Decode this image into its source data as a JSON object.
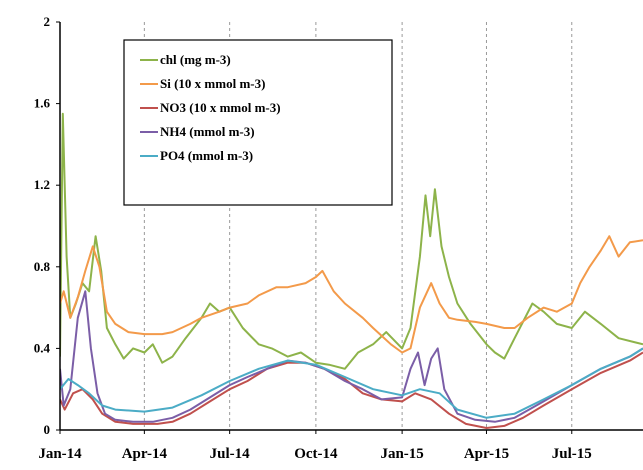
{
  "chart_data": {
    "type": "line",
    "title": "",
    "xlabel": "",
    "ylabel": "",
    "ylim": [
      0,
      2
    ],
    "yticks": [
      "0",
      "0.4",
      "0.8",
      "1.2",
      "1.6",
      "2"
    ],
    "xlim": [
      "2014-01-01",
      "2015-09-15"
    ],
    "xticks": [
      {
        "label": "Jan-14",
        "date": "2014-01-01"
      },
      {
        "label": "Apr-14",
        "date": "2014-04-01"
      },
      {
        "label": "Jul-14",
        "date": "2014-07-01"
      },
      {
        "label": "Oct-14",
        "date": "2014-10-01"
      },
      {
        "label": "Jan-15",
        "date": "2015-01-01"
      },
      {
        "label": "Apr-15",
        "date": "2015-04-01"
      },
      {
        "label": "Jul-15",
        "date": "2015-07-01"
      }
    ],
    "grid": "dashed vertical lines at each month tick",
    "legend_position": "top-left",
    "series": [
      {
        "name": "chl (mg m-3)",
        "color": "#8db34a",
        "points": [
          [
            "2014-01-01",
            0.36
          ],
          [
            "2014-01-04",
            1.55
          ],
          [
            "2014-01-08",
            0.85
          ],
          [
            "2014-01-12",
            0.55
          ],
          [
            "2014-01-18",
            0.62
          ],
          [
            "2014-01-25",
            0.72
          ],
          [
            "2014-02-01",
            0.68
          ],
          [
            "2014-02-08",
            0.95
          ],
          [
            "2014-02-14",
            0.78
          ],
          [
            "2014-02-20",
            0.5
          ],
          [
            "2014-03-01",
            0.42
          ],
          [
            "2014-03-10",
            0.35
          ],
          [
            "2014-03-20",
            0.4
          ],
          [
            "2014-04-01",
            0.38
          ],
          [
            "2014-04-10",
            0.42
          ],
          [
            "2014-04-20",
            0.33
          ],
          [
            "2014-05-01",
            0.36
          ],
          [
            "2014-05-15",
            0.45
          ],
          [
            "2014-06-01",
            0.55
          ],
          [
            "2014-06-10",
            0.62
          ],
          [
            "2014-06-20",
            0.58
          ],
          [
            "2014-07-01",
            0.6
          ],
          [
            "2014-07-15",
            0.5
          ],
          [
            "2014-08-01",
            0.42
          ],
          [
            "2014-08-15",
            0.4
          ],
          [
            "2014-09-01",
            0.36
          ],
          [
            "2014-09-15",
            0.38
          ],
          [
            "2014-10-01",
            0.33
          ],
          [
            "2014-10-15",
            0.32
          ],
          [
            "2014-11-01",
            0.3
          ],
          [
            "2014-11-15",
            0.38
          ],
          [
            "2014-12-01",
            0.42
          ],
          [
            "2014-12-15",
            0.48
          ],
          [
            "2015-01-01",
            0.4
          ],
          [
            "2015-01-10",
            0.5
          ],
          [
            "2015-01-20",
            0.85
          ],
          [
            "2015-01-26",
            1.15
          ],
          [
            "2015-01-31",
            0.95
          ],
          [
            "2015-02-05",
            1.18
          ],
          [
            "2015-02-12",
            0.9
          ],
          [
            "2015-02-20",
            0.75
          ],
          [
            "2015-03-01",
            0.62
          ],
          [
            "2015-03-15",
            0.52
          ],
          [
            "2015-04-01",
            0.42
          ],
          [
            "2015-04-10",
            0.38
          ],
          [
            "2015-04-20",
            0.35
          ],
          [
            "2015-05-01",
            0.45
          ],
          [
            "2015-05-20",
            0.62
          ],
          [
            "2015-06-01",
            0.58
          ],
          [
            "2015-06-15",
            0.52
          ],
          [
            "2015-07-01",
            0.5
          ],
          [
            "2015-07-15",
            0.58
          ],
          [
            "2015-08-01",
            0.52
          ],
          [
            "2015-08-20",
            0.45
          ],
          [
            "2015-09-15",
            0.42
          ]
        ]
      },
      {
        "name": "Si  (10 x mmol m-3)",
        "color": "#f39a4a",
        "points": [
          [
            "2014-01-01",
            0.62
          ],
          [
            "2014-01-05",
            0.68
          ],
          [
            "2014-01-12",
            0.55
          ],
          [
            "2014-01-20",
            0.65
          ],
          [
            "2014-01-28",
            0.78
          ],
          [
            "2014-02-05",
            0.9
          ],
          [
            "2014-02-12",
            0.8
          ],
          [
            "2014-02-20",
            0.58
          ],
          [
            "2014-03-01",
            0.52
          ],
          [
            "2014-03-15",
            0.48
          ],
          [
            "2014-04-01",
            0.47
          ],
          [
            "2014-04-20",
            0.47
          ],
          [
            "2014-05-01",
            0.48
          ],
          [
            "2014-05-20",
            0.52
          ],
          [
            "2014-06-01",
            0.55
          ],
          [
            "2014-06-20",
            0.58
          ],
          [
            "2014-07-01",
            0.6
          ],
          [
            "2014-07-20",
            0.62
          ],
          [
            "2014-08-01",
            0.66
          ],
          [
            "2014-08-20",
            0.7
          ],
          [
            "2014-09-01",
            0.7
          ],
          [
            "2014-09-20",
            0.72
          ],
          [
            "2014-10-01",
            0.75
          ],
          [
            "2014-10-08",
            0.78
          ],
          [
            "2014-10-20",
            0.68
          ],
          [
            "2014-11-01",
            0.62
          ],
          [
            "2014-11-20",
            0.55
          ],
          [
            "2014-12-01",
            0.5
          ],
          [
            "2014-12-20",
            0.42
          ],
          [
            "2015-01-01",
            0.38
          ],
          [
            "2015-01-10",
            0.4
          ],
          [
            "2015-01-20",
            0.6
          ],
          [
            "2015-02-01",
            0.72
          ],
          [
            "2015-02-10",
            0.62
          ],
          [
            "2015-02-20",
            0.55
          ],
          [
            "2015-03-01",
            0.54
          ],
          [
            "2015-03-20",
            0.53
          ],
          [
            "2015-04-01",
            0.52
          ],
          [
            "2015-04-20",
            0.5
          ],
          [
            "2015-05-01",
            0.5
          ],
          [
            "2015-05-15",
            0.55
          ],
          [
            "2015-06-01",
            0.6
          ],
          [
            "2015-06-15",
            0.58
          ],
          [
            "2015-07-01",
            0.62
          ],
          [
            "2015-07-10",
            0.72
          ],
          [
            "2015-07-20",
            0.8
          ],
          [
            "2015-08-01",
            0.88
          ],
          [
            "2015-08-10",
            0.95
          ],
          [
            "2015-08-20",
            0.85
          ],
          [
            "2015-09-01",
            0.92
          ],
          [
            "2015-09-15",
            0.93
          ]
        ]
      },
      {
        "name": "NO3  (10 x mmol m-3)",
        "color": "#c0504d",
        "points": [
          [
            "2014-01-01",
            0.15
          ],
          [
            "2014-01-06",
            0.1
          ],
          [
            "2014-01-15",
            0.18
          ],
          [
            "2014-01-25",
            0.2
          ],
          [
            "2014-02-05",
            0.15
          ],
          [
            "2014-02-15",
            0.08
          ],
          [
            "2014-03-01",
            0.04
          ],
          [
            "2014-03-20",
            0.03
          ],
          [
            "2014-04-15",
            0.03
          ],
          [
            "2014-05-01",
            0.04
          ],
          [
            "2014-05-20",
            0.08
          ],
          [
            "2014-06-10",
            0.14
          ],
          [
            "2014-07-01",
            0.2
          ],
          [
            "2014-07-20",
            0.24
          ],
          [
            "2014-08-10",
            0.3
          ],
          [
            "2014-09-01",
            0.33
          ],
          [
            "2014-09-20",
            0.33
          ],
          [
            "2014-10-10",
            0.3
          ],
          [
            "2014-11-01",
            0.25
          ],
          [
            "2014-11-20",
            0.18
          ],
          [
            "2014-12-10",
            0.15
          ],
          [
            "2015-01-01",
            0.14
          ],
          [
            "2015-01-15",
            0.18
          ],
          [
            "2015-02-01",
            0.15
          ],
          [
            "2015-02-20",
            0.08
          ],
          [
            "2015-03-10",
            0.03
          ],
          [
            "2015-04-01",
            0.01
          ],
          [
            "2015-04-20",
            0.02
          ],
          [
            "2015-05-10",
            0.06
          ],
          [
            "2015-06-01",
            0.12
          ],
          [
            "2015-07-01",
            0.2
          ],
          [
            "2015-08-01",
            0.28
          ],
          [
            "2015-09-01",
            0.34
          ],
          [
            "2015-09-15",
            0.38
          ]
        ]
      },
      {
        "name": "NH4 (mmol m-3)",
        "color": "#7b5ea7",
        "points": [
          [
            "2014-01-01",
            0.3
          ],
          [
            "2014-01-05",
            0.12
          ],
          [
            "2014-01-12",
            0.2
          ],
          [
            "2014-01-20",
            0.55
          ],
          [
            "2014-01-28",
            0.68
          ],
          [
            "2014-02-03",
            0.4
          ],
          [
            "2014-02-10",
            0.18
          ],
          [
            "2014-02-18",
            0.08
          ],
          [
            "2014-03-01",
            0.05
          ],
          [
            "2014-03-20",
            0.04
          ],
          [
            "2014-04-10",
            0.04
          ],
          [
            "2014-05-01",
            0.06
          ],
          [
            "2014-05-20",
            0.1
          ],
          [
            "2014-06-10",
            0.16
          ],
          [
            "2014-07-01",
            0.22
          ],
          [
            "2014-07-20",
            0.26
          ],
          [
            "2014-08-10",
            0.3
          ],
          [
            "2014-09-01",
            0.34
          ],
          [
            "2014-09-20",
            0.33
          ],
          [
            "2014-10-10",
            0.3
          ],
          [
            "2014-11-01",
            0.24
          ],
          [
            "2014-11-20",
            0.2
          ],
          [
            "2014-12-10",
            0.15
          ],
          [
            "2015-01-01",
            0.16
          ],
          [
            "2015-01-10",
            0.3
          ],
          [
            "2015-01-18",
            0.38
          ],
          [
            "2015-01-25",
            0.22
          ],
          [
            "2015-02-01",
            0.35
          ],
          [
            "2015-02-08",
            0.4
          ],
          [
            "2015-02-15",
            0.2
          ],
          [
            "2015-03-01",
            0.08
          ],
          [
            "2015-03-20",
            0.05
          ],
          [
            "2015-04-10",
            0.04
          ],
          [
            "2015-05-01",
            0.06
          ],
          [
            "2015-06-01",
            0.14
          ],
          [
            "2015-07-01",
            0.22
          ],
          [
            "2015-08-01",
            0.3
          ],
          [
            "2015-09-01",
            0.36
          ],
          [
            "2015-09-15",
            0.4
          ]
        ]
      },
      {
        "name": "PO4  (mmol m-3)",
        "color": "#4bacc6",
        "points": [
          [
            "2014-01-01",
            0.2
          ],
          [
            "2014-01-10",
            0.25
          ],
          [
            "2014-01-20",
            0.22
          ],
          [
            "2014-02-01",
            0.18
          ],
          [
            "2014-02-15",
            0.12
          ],
          [
            "2014-03-01",
            0.1
          ],
          [
            "2014-04-01",
            0.09
          ],
          [
            "2014-05-01",
            0.11
          ],
          [
            "2014-06-01",
            0.17
          ],
          [
            "2014-07-01",
            0.24
          ],
          [
            "2014-08-01",
            0.3
          ],
          [
            "2014-09-01",
            0.34
          ],
          [
            "2014-10-01",
            0.32
          ],
          [
            "2014-11-01",
            0.26
          ],
          [
            "2014-12-01",
            0.2
          ],
          [
            "2015-01-01",
            0.17
          ],
          [
            "2015-01-20",
            0.2
          ],
          [
            "2015-02-10",
            0.18
          ],
          [
            "2015-03-01",
            0.1
          ],
          [
            "2015-04-01",
            0.06
          ],
          [
            "2015-05-01",
            0.08
          ],
          [
            "2015-06-01",
            0.15
          ],
          [
            "2015-07-01",
            0.22
          ],
          [
            "2015-08-01",
            0.3
          ],
          [
            "2015-09-01",
            0.36
          ],
          [
            "2015-09-15",
            0.4
          ]
        ]
      }
    ]
  }
}
